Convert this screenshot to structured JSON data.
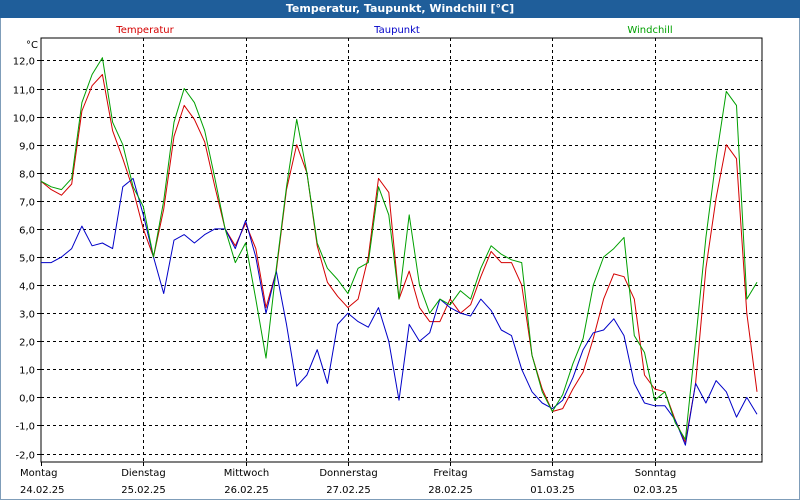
{
  "window": {
    "title": "Temperatur, Taupunkt, Windchill [°C]"
  },
  "chart_data": {
    "type": "line",
    "title": "Temperatur, Taupunkt, Windchill [°C]",
    "ylabel": "°C",
    "ylim": [
      -2.3,
      12.8
    ],
    "yticks": [
      "12,0",
      "11,0",
      "10,0",
      "9,0",
      "8,0",
      "7,0",
      "6,0",
      "5,0",
      "4,0",
      "3,0",
      "2,0",
      "1,0",
      "0,0",
      "-1,0",
      "-2,0"
    ],
    "ytick_values": [
      12,
      11,
      10,
      9,
      8,
      7,
      6,
      5,
      4,
      3,
      2,
      1,
      0,
      -1,
      -2
    ],
    "xlim": [
      0,
      7
    ],
    "days": [
      {
        "day": "Montag",
        "date": "24.02.25"
      },
      {
        "day": "Dienstag",
        "date": "25.02.25"
      },
      {
        "day": "Mittwoch",
        "date": "26.02.25"
      },
      {
        "day": "Donnerstag",
        "date": "27.02.25"
      },
      {
        "day": "Freitag",
        "date": "28.02.25"
      },
      {
        "day": "Samstag",
        "date": "01.03.25"
      },
      {
        "day": "Sonntag",
        "date": "02.03.25"
      }
    ],
    "grid": true,
    "series": [
      {
        "name": "Temperatur",
        "color": "#d40000",
        "x": [
          0,
          0.1,
          0.2,
          0.3,
          0.4,
          0.5,
          0.6,
          0.7,
          0.8,
          0.9,
          1.0,
          1.1,
          1.2,
          1.3,
          1.4,
          1.5,
          1.6,
          1.7,
          1.8,
          1.9,
          2.0,
          2.1,
          2.2,
          2.3,
          2.4,
          2.5,
          2.6,
          2.7,
          2.8,
          2.9,
          3.0,
          3.1,
          3.2,
          3.3,
          3.4,
          3.5,
          3.6,
          3.7,
          3.8,
          3.9,
          4.0,
          4.1,
          4.2,
          4.3,
          4.4,
          4.5,
          4.6,
          4.7,
          4.8,
          4.9,
          5.0,
          5.1,
          5.2,
          5.3,
          5.4,
          5.5,
          5.6,
          5.7,
          5.8,
          5.9,
          6.0,
          6.1,
          6.2,
          6.3,
          6.4,
          6.5,
          6.6,
          6.7,
          6.8,
          6.9,
          7.0
        ],
        "y": [
          7.7,
          7.4,
          7.2,
          7.6,
          10.2,
          11.1,
          11.5,
          9.5,
          8.5,
          7.4,
          6.0,
          5.0,
          6.7,
          9.3,
          10.4,
          9.9,
          9.1,
          7.5,
          6.0,
          5.4,
          6.2,
          5.3,
          3.2,
          4.5,
          7.4,
          9.0,
          8.0,
          5.4,
          4.1,
          3.6,
          3.2,
          3.5,
          5.0,
          7.8,
          7.3,
          3.5,
          4.5,
          3.2,
          2.7,
          2.7,
          3.5,
          3.0,
          3.3,
          4.3,
          5.2,
          4.8,
          4.8,
          4.0,
          1.5,
          0.3,
          -0.5,
          -0.4,
          0.3,
          0.9,
          2.1,
          3.5,
          4.4,
          4.3,
          3.5,
          0.8,
          0.3,
          0.2,
          -0.8,
          -1.6,
          0.5,
          4.6,
          7.1,
          9.0,
          8.5,
          3.0,
          0.2
        ]
      },
      {
        "name": "Taupunkt",
        "color": "#0000c8",
        "x": [
          0,
          0.1,
          0.2,
          0.3,
          0.4,
          0.5,
          0.6,
          0.7,
          0.8,
          0.9,
          1.0,
          1.1,
          1.2,
          1.3,
          1.4,
          1.5,
          1.6,
          1.7,
          1.8,
          1.9,
          2.0,
          2.1,
          2.2,
          2.3,
          2.4,
          2.5,
          2.6,
          2.7,
          2.8,
          2.9,
          3.0,
          3.1,
          3.2,
          3.3,
          3.4,
          3.5,
          3.6,
          3.7,
          3.8,
          3.9,
          4.0,
          4.1,
          4.2,
          4.3,
          4.4,
          4.5,
          4.6,
          4.7,
          4.8,
          4.9,
          5.0,
          5.1,
          5.2,
          5.3,
          5.4,
          5.5,
          5.6,
          5.7,
          5.8,
          5.9,
          6.0,
          6.1,
          6.2,
          6.3,
          6.4,
          6.5,
          6.6,
          6.7,
          6.8,
          6.9,
          7.0
        ],
        "y": [
          4.8,
          4.8,
          5.0,
          5.3,
          6.1,
          5.4,
          5.5,
          5.3,
          7.5,
          7.8,
          6.5,
          5.0,
          3.7,
          5.6,
          5.8,
          5.5,
          5.8,
          6.0,
          6.0,
          5.3,
          6.3,
          5.0,
          3.0,
          4.5,
          2.6,
          0.4,
          0.8,
          1.7,
          0.5,
          2.6,
          3.0,
          2.7,
          2.5,
          3.2,
          2.0,
          -0.1,
          2.6,
          2.0,
          2.3,
          3.5,
          3.2,
          3.0,
          2.9,
          3.5,
          3.1,
          2.4,
          2.2,
          1.0,
          0.2,
          -0.2,
          -0.4,
          -0.1,
          0.7,
          1.7,
          2.3,
          2.4,
          2.8,
          2.2,
          0.5,
          -0.2,
          -0.3,
          -0.3,
          -0.8,
          -1.7,
          0.5,
          -0.2,
          0.6,
          0.2,
          -0.7,
          0.0,
          -0.6
        ]
      },
      {
        "name": "Windchill",
        "color": "#00a000",
        "x": [
          0,
          0.1,
          0.2,
          0.3,
          0.4,
          0.5,
          0.6,
          0.7,
          0.8,
          0.9,
          1.0,
          1.1,
          1.2,
          1.3,
          1.4,
          1.5,
          1.6,
          1.7,
          1.8,
          1.9,
          2.0,
          2.1,
          2.2,
          2.3,
          2.4,
          2.5,
          2.6,
          2.7,
          2.8,
          2.9,
          3.0,
          3.1,
          3.2,
          3.3,
          3.4,
          3.5,
          3.6,
          3.7,
          3.8,
          3.9,
          4.0,
          4.1,
          4.2,
          4.3,
          4.4,
          4.5,
          4.6,
          4.7,
          4.8,
          4.9,
          5.0,
          5.1,
          5.2,
          5.3,
          5.4,
          5.5,
          5.6,
          5.7,
          5.8,
          5.9,
          6.0,
          6.1,
          6.2,
          6.3,
          6.4,
          6.5,
          6.6,
          6.7,
          6.8,
          6.9,
          7.0
        ],
        "y": [
          7.7,
          7.5,
          7.4,
          7.8,
          10.5,
          11.5,
          12.1,
          9.8,
          9.0,
          7.5,
          6.8,
          5.0,
          7.0,
          9.8,
          11.0,
          10.5,
          9.5,
          7.8,
          6.0,
          4.8,
          5.5,
          3.5,
          1.4,
          4.6,
          7.5,
          9.9,
          8.0,
          5.5,
          4.6,
          4.2,
          3.7,
          4.6,
          4.8,
          7.5,
          6.5,
          3.5,
          6.5,
          4.0,
          3.0,
          3.5,
          3.3,
          3.8,
          3.5,
          4.6,
          5.4,
          5.1,
          4.9,
          4.8,
          1.5,
          0.2,
          -0.5,
          0.1,
          1.2,
          2.1,
          4.0,
          5.0,
          5.3,
          5.7,
          2.2,
          1.6,
          -0.1,
          0.2,
          -0.9,
          -1.5,
          2.0,
          5.7,
          8.5,
          10.9,
          10.4,
          3.5,
          4.1
        ]
      }
    ]
  }
}
